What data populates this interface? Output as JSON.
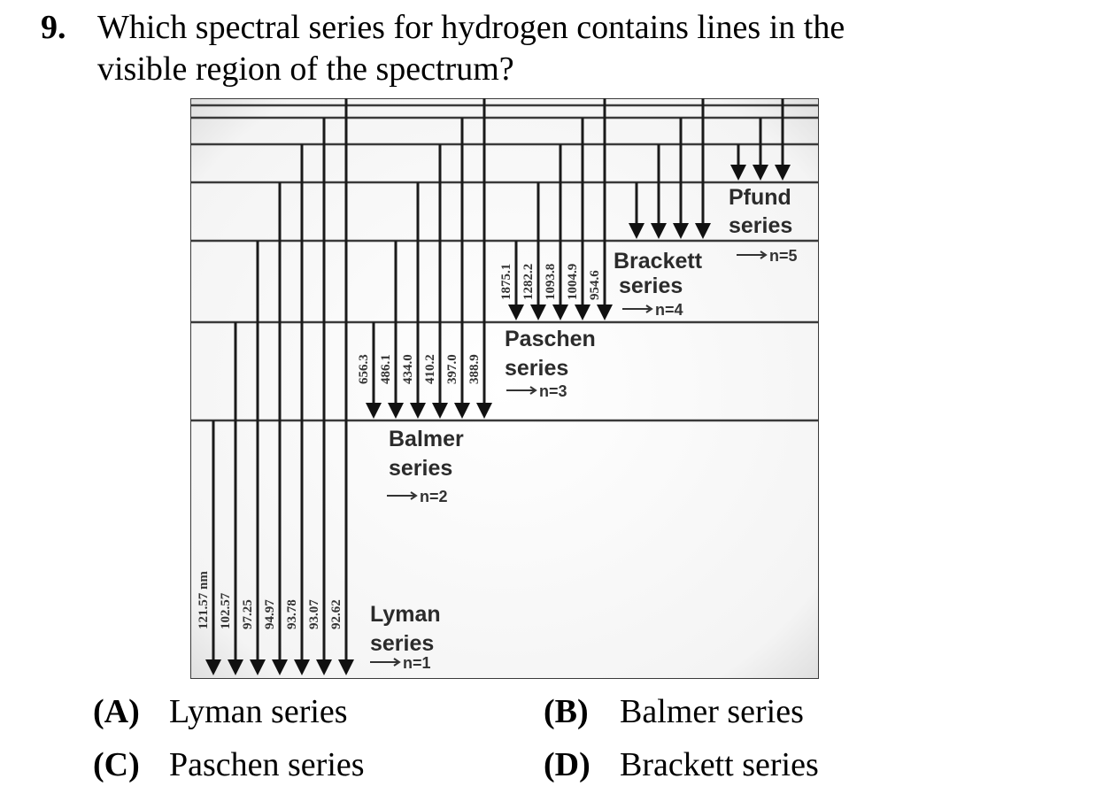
{
  "question": {
    "number": "9.",
    "line1": "Which spectral series for hydrogen contains lines in the",
    "line2": "visible region of the spectrum?"
  },
  "diagram": {
    "series": [
      {
        "id": "lyman",
        "name_line1": "Lyman",
        "name_line2": "series",
        "level": "n=1",
        "wavelengths": [
          "121.57 nm",
          "102.57",
          "97.25",
          "94.97",
          "93.78",
          "93.07",
          "92.62"
        ]
      },
      {
        "id": "balmer",
        "name_line1": "Balmer",
        "name_line2": "series",
        "level": "n=2",
        "wavelengths": [
          "656.3",
          "486.1",
          "434.0",
          "410.2",
          "397.0",
          "388.9"
        ]
      },
      {
        "id": "paschen",
        "name_line1": "Paschen",
        "name_line2": "series",
        "level": "n=3",
        "wavelengths": [
          "1875.1",
          "1282.2",
          "1093.8",
          "1004.9",
          "954.6"
        ]
      },
      {
        "id": "brackett",
        "name_line1": "Brackett",
        "name_line2": "series",
        "level": "n=4",
        "wavelengths": []
      },
      {
        "id": "pfund",
        "name_line1": "Pfund",
        "name_line2": "series",
        "level": "n=5",
        "wavelengths": []
      }
    ]
  },
  "options": [
    {
      "letter": "(A)",
      "text": "Lyman series"
    },
    {
      "letter": "(B)",
      "text": "Balmer series"
    },
    {
      "letter": "(C)",
      "text": "Paschen series"
    },
    {
      "letter": "(D)",
      "text": "Brackett series"
    }
  ]
}
